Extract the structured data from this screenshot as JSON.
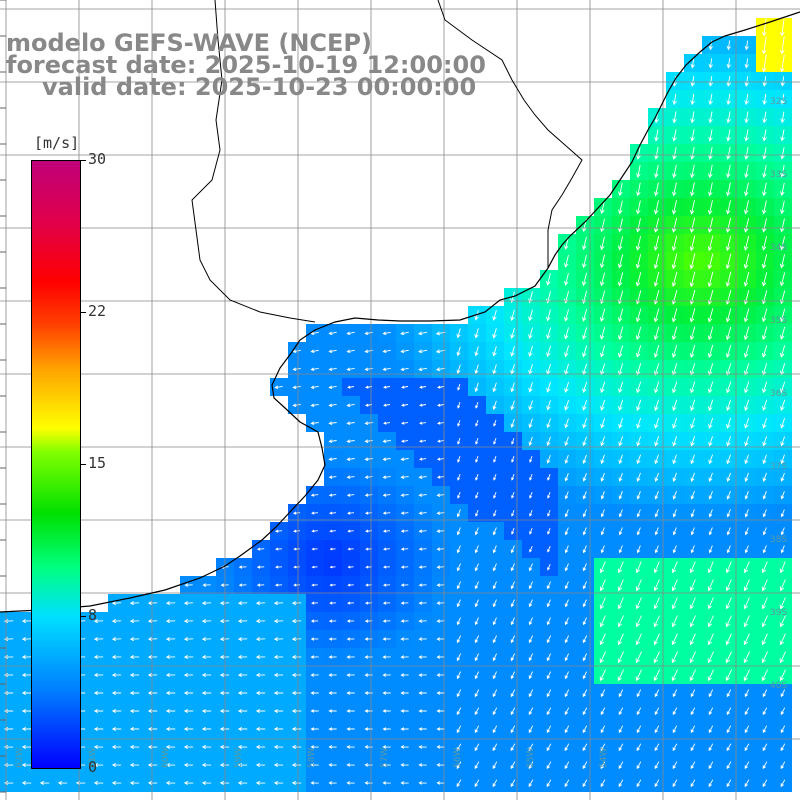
{
  "title": {
    "line1": "modelo GEFS-WAVE (NCEP)",
    "line2": "forecast date: 2025-10-19 12:00:00",
    "line3": "valid date: 2025-10-23 00:00:00"
  },
  "colorbar": {
    "unit": "[m/s]",
    "ticks": [
      "30",
      "22",
      "15",
      "8",
      "0"
    ],
    "colors": [
      "#0000ff",
      "#0080ff",
      "#00e0ff",
      "#00ff80",
      "#00e000",
      "#80ff00",
      "#ffff00",
      "#ffa000",
      "#ff0000",
      "#c0007a"
    ]
  },
  "grid_labels": {
    "lat_right": [
      "32S",
      "33S",
      "34S",
      "35S",
      "36S",
      "37S",
      "38S",
      "39S",
      "40S"
    ],
    "lon_bottom": [
      "62W",
      "61W",
      "60W",
      "59W",
      "58W",
      "57W",
      "56W",
      "55W",
      "54W"
    ]
  },
  "map_colors": {
    "land": "#ffffff",
    "coast": "#000000",
    "grid": "#888888",
    "arrows": "#ffffff"
  }
}
